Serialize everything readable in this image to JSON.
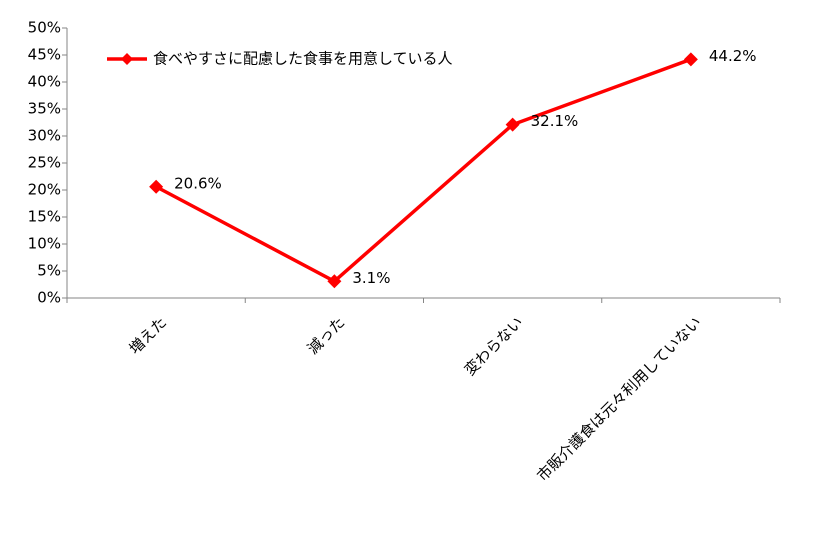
{
  "chart_data": {
    "type": "line",
    "categories": [
      "増えた",
      "減った",
      "変わらない",
      "市販介護食は元々利用していない"
    ],
    "series": [
      {
        "name": "食べやすさに配慮した食事を用意している人",
        "color": "#ff0000",
        "values": [
          20.6,
          3.1,
          32.1,
          44.2
        ],
        "value_labels": [
          "20.6%",
          "3.1%",
          "32.1%",
          "44.2%"
        ]
      }
    ],
    "ylim": [
      0,
      50
    ],
    "yticks": [
      {
        "value": 0,
        "label": "0%"
      },
      {
        "value": 5,
        "label": "5%"
      },
      {
        "value": 10,
        "label": "10%"
      },
      {
        "value": 15,
        "label": "15%"
      },
      {
        "value": 20,
        "label": "20%"
      },
      {
        "value": 25,
        "label": "25%"
      },
      {
        "value": 30,
        "label": "30%"
      },
      {
        "value": 35,
        "label": "35%"
      },
      {
        "value": 40,
        "label": "40%"
      },
      {
        "value": 45,
        "label": "45%"
      },
      {
        "value": 50,
        "label": "50%"
      }
    ],
    "legend": "top-left",
    "grid": false
  }
}
